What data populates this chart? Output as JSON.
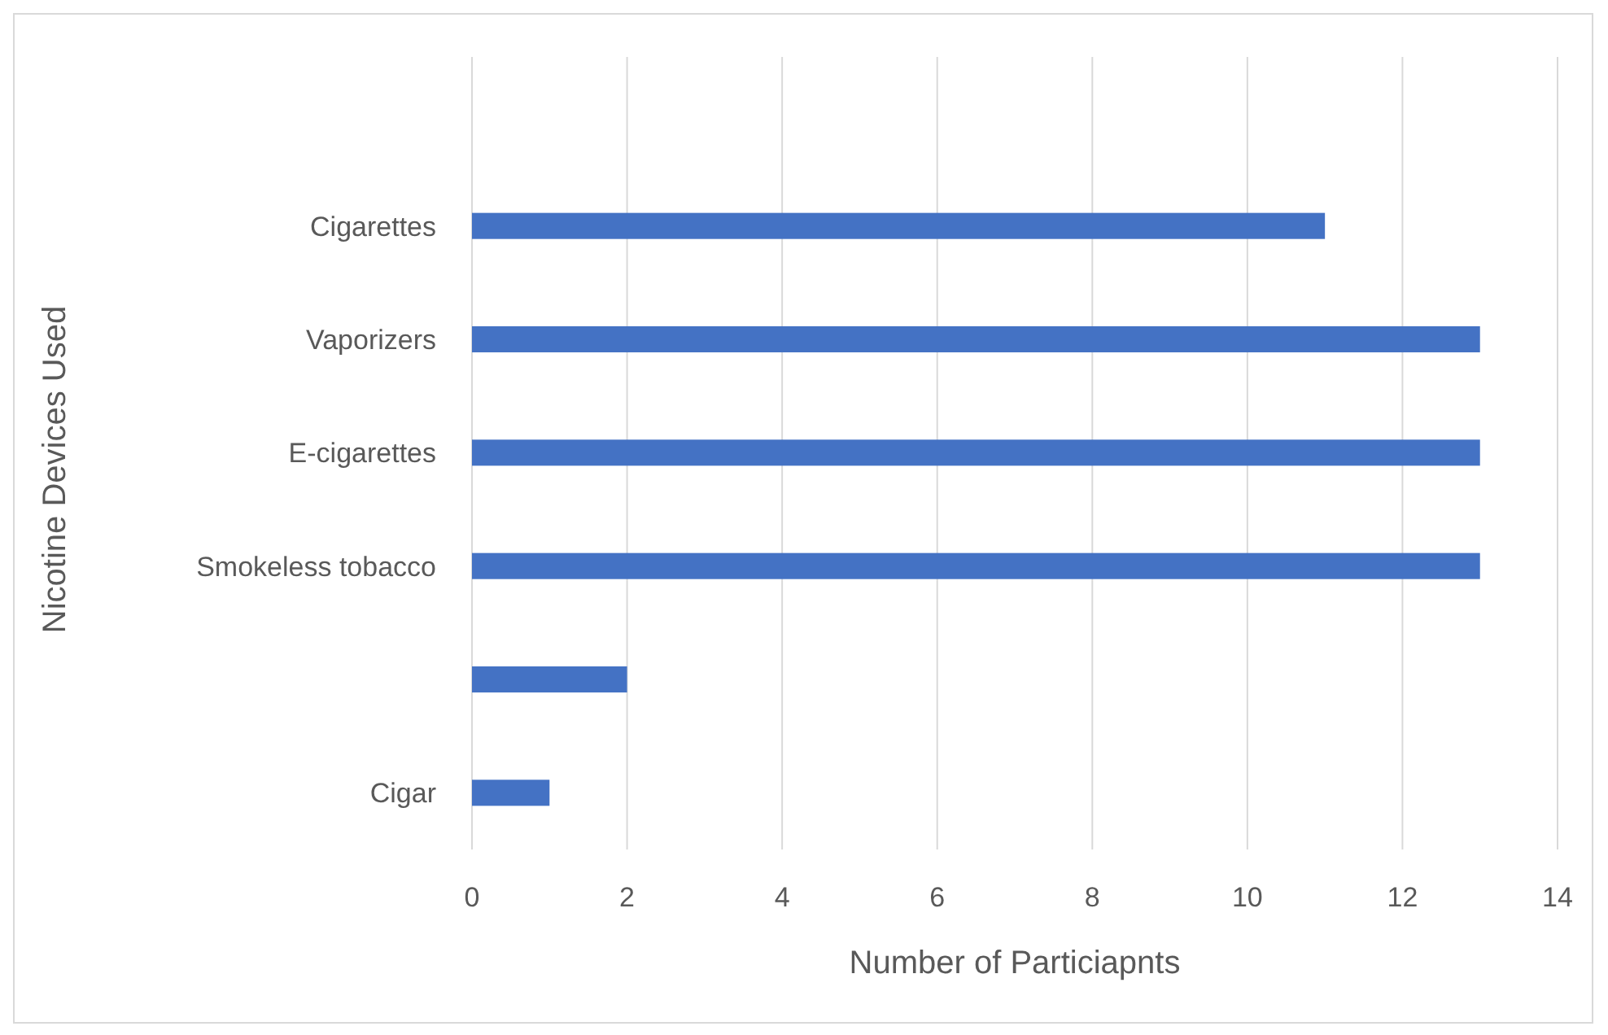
{
  "chart_data": {
    "type": "bar",
    "orientation": "horizontal",
    "xlabel": "Number of Particiapnts",
    "ylabel": "Nicotine Devices Used",
    "categories": [
      "Cigarettes",
      "Vaporizers",
      "E-cigarettes",
      "Smokeless tobacco",
      null,
      "Cigar"
    ],
    "values": [
      11,
      13,
      13,
      13,
      2,
      1
    ],
    "color": "#4472c4",
    "xlim": [
      0,
      14
    ],
    "xticks": [
      0,
      2,
      4,
      6,
      8,
      10,
      12,
      14
    ],
    "grid": "x"
  }
}
